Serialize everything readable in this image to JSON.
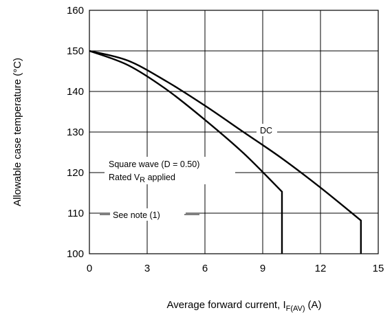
{
  "chart_data": {
    "type": "line",
    "xlabel": {
      "main": "Average forward current, I",
      "sub": "F(AV)",
      "unit": "(A)"
    },
    "ylabel": "Allowable case temperature (°C)",
    "xlim": [
      0,
      15
    ],
    "ylim": [
      100,
      160
    ],
    "x_ticks": [
      "0",
      "3",
      "6",
      "9",
      "12",
      "15"
    ],
    "y_ticks": [
      "100",
      "110",
      "120",
      "130",
      "140",
      "150",
      "160"
    ],
    "grid": true,
    "series": [
      {
        "name": "DC",
        "x": [
          0,
          2,
          4,
          6,
          8,
          10,
          12,
          14.1,
          14.1
        ],
        "y": [
          150,
          147.6,
          142.5,
          136.5,
          130,
          123.5,
          116.3,
          108.2,
          100
        ]
      },
      {
        "name": "Square wave (D = 0.50)",
        "x": [
          0,
          2,
          4,
          6,
          8,
          10,
          10,
          10
        ],
        "y": [
          150,
          146.5,
          140.5,
          133,
          124.8,
          115.3,
          115.3,
          100
        ]
      }
    ],
    "annotations": [
      {
        "id": "dc",
        "text": "DC"
      },
      {
        "id": "square",
        "text": "Square wave (D = 0.50)"
      },
      {
        "id": "rated",
        "text_main": "Rated V",
        "text_sub": "R",
        "text_tail": " applied"
      },
      {
        "id": "note",
        "text": "See note (1)"
      }
    ]
  }
}
